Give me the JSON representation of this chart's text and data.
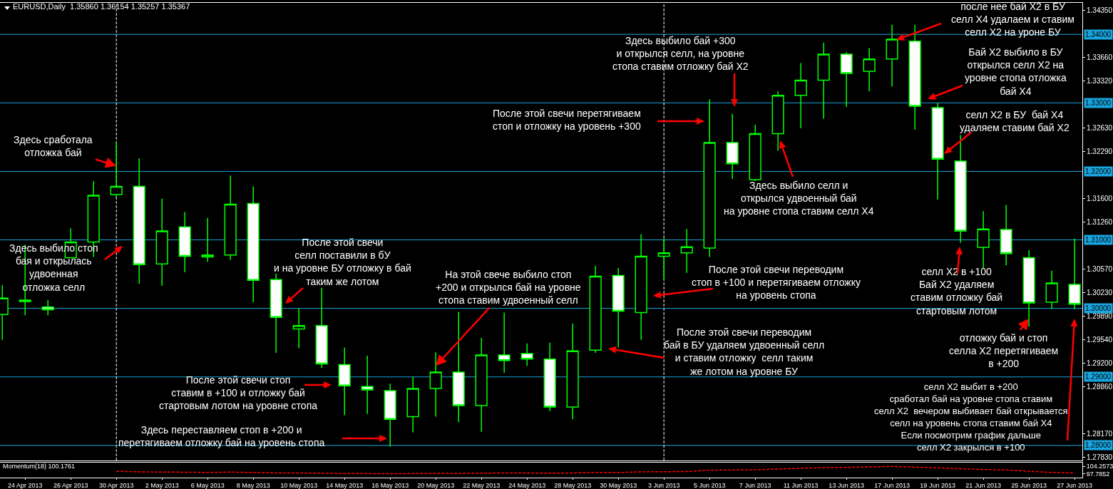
{
  "chart_data": [
    {
      "type": "candlestick",
      "title": "EURUSD,Daily  1.35860 1.36154 1.35257 1.35367",
      "color": "#00ff00",
      "categories": [
        null,
        "24 Apr 2013",
        null,
        "26 Apr 2013",
        null,
        "30 Apr 2013",
        null,
        "2 May 2013",
        null,
        "6 May 2013",
        null,
        "8 May 2013",
        null,
        "10 May 2013",
        null,
        "14 May 2013",
        null,
        "16 May 2013",
        null,
        "20 May 2013",
        null,
        "22 May 2013",
        null,
        "24 May 2013",
        null,
        "28 May 2013",
        null,
        "30 May 2013",
        null,
        "3 Jun 2013",
        null,
        "5 Jun 2013",
        null,
        "7 Jun 2013",
        null,
        "11 Jun 2013",
        null,
        "13 Jun 2013",
        null,
        "17 Jun 2013",
        null,
        "19 Jun 2013",
        null,
        "21 Jun 2013",
        null,
        "25 Jun 2013",
        null,
        "27 Jun 2013"
      ],
      "ohlc": [
        [
          1.2991,
          1.3034,
          1.2954,
          1.3015
        ],
        [
          1.301,
          1.3093,
          1.299,
          1.3012
        ],
        [
          1.3002,
          1.3012,
          1.299,
          1.2998
        ],
        [
          1.3074,
          1.3117,
          1.3074,
          1.3097
        ],
        [
          1.3097,
          1.3186,
          1.3075,
          1.3165
        ],
        [
          1.3166,
          1.3242,
          1.3161,
          1.3178
        ],
        [
          1.3178,
          1.3219,
          1.3036,
          1.3064
        ],
        [
          1.3065,
          1.316,
          1.3033,
          1.3113
        ],
        [
          1.3119,
          1.3141,
          1.3053,
          1.3076
        ],
        [
          1.3075,
          1.3132,
          1.3068,
          1.3078
        ],
        [
          1.3078,
          1.3194,
          1.3071,
          1.3152
        ],
        [
          1.3153,
          1.3178,
          1.3009,
          1.3041
        ],
        [
          1.3042,
          1.3051,
          1.2935,
          1.2987
        ],
        [
          1.297,
          1.3,
          1.2942,
          1.2975
        ],
        [
          1.2975,
          1.303,
          1.2913,
          1.2919
        ],
        [
          1.2918,
          1.2943,
          1.2844,
          1.2887
        ],
        [
          1.2886,
          1.2931,
          1.2846,
          1.2881
        ],
        [
          1.288,
          1.289,
          1.2798,
          1.2838
        ],
        [
          1.2842,
          1.29,
          1.2819,
          1.2883
        ],
        [
          1.2883,
          1.2936,
          1.2842,
          1.2907
        ],
        [
          1.2907,
          1.2995,
          1.2834,
          1.2858
        ],
        [
          1.2858,
          1.2957,
          1.282,
          1.2932
        ],
        [
          1.2932,
          1.2994,
          1.2906,
          1.2924
        ],
        [
          1.2934,
          1.2949,
          1.2916,
          1.2926
        ],
        [
          1.2926,
          1.295,
          1.285,
          1.2856
        ],
        [
          1.2856,
          1.2978,
          1.2838,
          1.2938
        ],
        [
          1.2939,
          1.3062,
          1.2935,
          1.3047
        ],
        [
          1.3048,
          1.3059,
          1.2943,
          1.2996
        ],
        [
          1.2994,
          1.3108,
          1.2954,
          1.3076
        ],
        [
          1.3076,
          1.3102,
          1.3042,
          1.3081
        ],
        [
          1.3081,
          1.3116,
          1.3052,
          1.309
        ],
        [
          1.3088,
          1.3305,
          1.3075,
          1.3242
        ],
        [
          1.3242,
          1.3284,
          1.3189,
          1.3211
        ],
        [
          1.3188,
          1.3268,
          1.3186,
          1.3255
        ],
        [
          1.3255,
          1.3317,
          1.323,
          1.3311
        ],
        [
          1.3311,
          1.3358,
          1.3263,
          1.3333
        ],
        [
          1.3333,
          1.3388,
          1.3277,
          1.3371
        ],
        [
          1.3371,
          1.3374,
          1.3294,
          1.3343
        ],
        [
          1.3346,
          1.338,
          1.3317,
          1.3364
        ],
        [
          1.3364,
          1.3414,
          1.3324,
          1.3393
        ],
        [
          1.339,
          1.3414,
          1.3261,
          1.3295
        ],
        [
          1.3293,
          1.33,
          1.3159,
          1.3218
        ],
        [
          1.3215,
          1.3253,
          1.3096,
          1.3113
        ],
        [
          1.3089,
          1.3142,
          1.3058,
          1.3116
        ],
        [
          1.3115,
          1.3151,
          1.3063,
          1.308
        ],
        [
          1.3074,
          1.3085,
          1.2973,
          1.3008
        ],
        [
          1.3009,
          1.3055,
          1.2999,
          1.3037
        ],
        [
          1.3035,
          1.3102,
          1.2999,
          1.3006
        ]
      ],
      "ylim": [
        1.2778,
        1.3446
      ],
      "yticks": [
        {
          "value": 1.3435,
          "label": "1.34350"
        },
        {
          "value": 1.3366,
          "label": "1.33660"
        },
        {
          "value": 1.3332,
          "label": "1.33320"
        },
        {
          "value": 1.3263,
          "label": "1.32630"
        },
        {
          "value": 1.3229,
          "label": "1.32290"
        },
        {
          "value": 1.316,
          "label": "1.31600"
        },
        {
          "value": 1.3126,
          "label": "1.31260"
        },
        {
          "value": 1.3057,
          "label": "1.30570"
        },
        {
          "value": 1.3023,
          "label": "1.30230"
        },
        {
          "value": 1.2989,
          "label": "1.29890"
        },
        {
          "value": 1.2954,
          "label": "1.29540"
        },
        {
          "value": 1.292,
          "label": "1.29200"
        },
        {
          "value": 1.2886,
          "label": "1.28860"
        },
        {
          "value": 1.2817,
          "label": "1.28170"
        },
        {
          "value": 1.2783,
          "label": "1.27830"
        }
      ],
      "tick_labels": "y",
      "ref_lines": [
        {
          "axis": "y",
          "value": 1.34,
          "label": "1.34000",
          "color": "#19a6e0"
        },
        {
          "axis": "y",
          "value": 1.33,
          "label": "1.33000",
          "color": "#19a6e0"
        },
        {
          "axis": "y",
          "value": 1.32,
          "label": "1.32000",
          "color": "#19a6e0"
        },
        {
          "axis": "y",
          "value": 1.31,
          "label": "1.31000",
          "color": "#19a6e0"
        },
        {
          "axis": "y",
          "value": 1.3,
          "label": "1.30000",
          "color": "#19a6e0"
        },
        {
          "axis": "y",
          "value": 1.29,
          "label": "1.29000",
          "color": "#19a6e0"
        },
        {
          "axis": "y",
          "value": 1.28,
          "label": "1.28000",
          "color": "#19a6e0"
        },
        {
          "axis": "x",
          "value": "30 Apr 2013",
          "color": "#ffffff",
          "line_style": "dashed"
        },
        {
          "axis": "x",
          "value": "3 Jun 2013",
          "color": "#ffffff",
          "line_style": "dashed"
        }
      ],
      "annotations": [
        {
          "text": "Здесь сработала\nотложка бай",
          "x": "30 Apr 2013",
          "y": 1.3208
        },
        "Здесь выбило стоп\nбая и открылась\nудвоенная\nотложка селл",
        "После этой свечи\nселл поставили в бУ\nи на уровне БУ отложку в бай\nтаким же лотом",
        {
          "text": "На этой свече выбило стоп\n+200 и открылся бай на уровне\nстопа ставим удвоенный селл",
          "x": "20 May 2013",
          "y": 1.2916
        },
        "После этой свечи перетягиваем\nстоп и отложку на уровень +300",
        "Здесь выбило бай +300\nи открылся селл, на уровне\nстопа ставим отложку бай Х2",
        "Здесь выбило селл и\nоткрылся удвоенный бай\nна уровне стопа ставим селл Х4",
        "После этой свечи переводим\nстоп в +100 и перетягиваем отложку\nна уровень стопа",
        "После этой свечи переводим\nбай в БУ удаляем удвоенный селл\nи ставим отложку  селл таким\nже лотом на уровне БУ",
        "После этой свечи стоп\nставим в +100 и отложку бай\nстартовым лотом на уровне стопа",
        "Здесь переставляем стоп в +200 и\nперетягиваем отложку бай на уровень стопа",
        "после нее бай Х2 в БУ\nселл Х4 удалаем и ставим\nселл Х2 на уроне БУ",
        "Бай Х2 выбило в БУ\nоткрылся селл Х2 на\nуровне стопа отложка\nбай Х4",
        "селл Х2 в БУ  бай Х4\nудаляем ставим бай Х2",
        "селл Х2 в +100\nБай Х2 удаляем\nставим отложку бай\nстартовым лотом",
        {
          "text": "отложку бай и стоп\nселла Х2 перетягиваем\nв +200",
          "x": "25 Jun 2013",
          "y": 1.2985
        },
        "селл Х2 выбит в +200\nсработал бай на уровне стопа ставим\nселл Х2  вечером выбивает бай открывается\nселл на уровень стопа ставим бай Х4\nЕсли посмотрим график дальше\nселл Х2 закрылся в +100"
      ]
    },
    {
      "type": "line",
      "title": "Momentum(18) 100.1761",
      "color": "#ff0000",
      "line_style": "dashed",
      "categories": [
        null,
        "24 Apr 2013",
        null,
        "26 Apr 2013",
        null,
        "30 Apr 2013",
        null,
        "2 May 2013",
        null,
        "6 May 2013",
        null,
        "8 May 2013",
        null,
        "10 May 2013",
        null,
        "14 May 2013",
        null,
        "16 May 2013",
        null,
        "20 May 2013",
        null,
        "22 May 2013",
        null,
        "24 May 2013",
        null,
        "28 May 2013",
        null,
        "30 May 2013",
        null,
        "3 Jun 2013",
        null,
        "5 Jun 2013",
        null,
        "7 Jun 2013",
        null,
        "11 Jun 2013",
        null,
        "13 Jun 2013",
        null,
        "17 Jun 2013",
        null,
        "19 Jun 2013",
        null,
        "21 Jun 2013",
        null,
        "25 Jun 2013",
        null,
        "27 Jun 2013"
      ],
      "values": [
        null,
        null,
        null,
        null,
        null,
        100.0,
        99.5,
        99.3,
        99.2,
        99.0,
        99.3,
        98.9,
        98.6,
        98.5,
        98.3,
        98.1,
        98.0,
        97.9,
        98.0,
        98.2,
        98.1,
        98.4,
        98.5,
        98.5,
        98.3,
        98.5,
        99.0,
        98.9,
        99.5,
        99.6,
        99.8,
        101.0,
        101.2,
        101.3,
        102.0,
        102.6,
        103.2,
        103.3,
        103.8,
        104.2,
        103.6,
        103.0,
        102.2,
        101.5,
        101.2,
        100.0,
        99.0,
        98.5
      ],
      "ylim": [
        94.5,
        107.5
      ],
      "yticks": [
        104.2573,
        97.7852
      ]
    }
  ]
}
